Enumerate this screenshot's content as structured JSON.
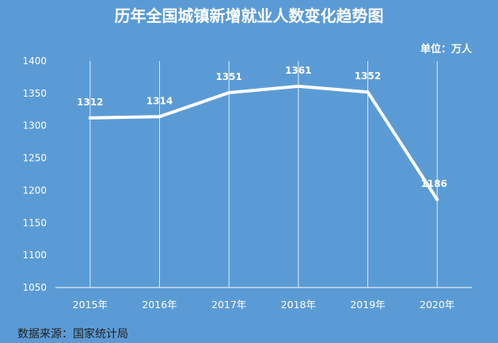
{
  "chart_data": {
    "type": "line",
    "title": "历年全国城镇新增就业人数变化趋势图",
    "unit_label": "单位：万人",
    "categories": [
      "2015年",
      "2016年",
      "2017年",
      "2018年",
      "2019年",
      "2020年"
    ],
    "values": [
      1312,
      1314,
      1351,
      1361,
      1352,
      1186
    ],
    "ylim": [
      1050,
      1400
    ],
    "yticks": [
      1050,
      1100,
      1150,
      1200,
      1250,
      1300,
      1350,
      1400
    ],
    "grid": "vertical",
    "colors": {
      "background": "#5b9bd5",
      "line": "#ffffff",
      "grid": "#ffffff"
    }
  },
  "source": "数据来源：国家统计局"
}
